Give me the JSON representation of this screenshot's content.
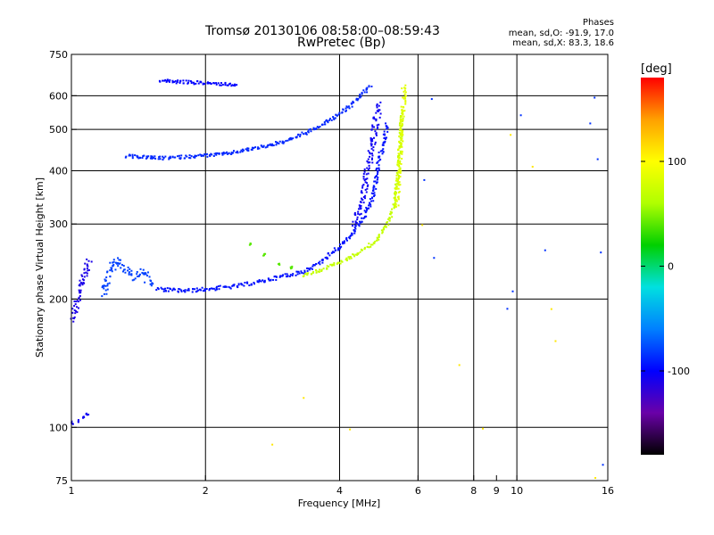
{
  "chart_data": {
    "type": "scatter",
    "title": "Tromsø 20130106 08:58:00–08:59:43",
    "subtitle": "RwPretec (Bp)",
    "xlabel": "Frequency [MHz]",
    "ylabel": "Stationary phase Virtual Height [km]",
    "xscale": "log",
    "yscale": "log",
    "xlim": [
      1,
      16
    ],
    "ylim": [
      75,
      750
    ],
    "x_ticks": [
      {
        "v": 1,
        "label": "1"
      },
      {
        "v": 2,
        "label": "2"
      },
      {
        "v": 4,
        "label": "4"
      },
      {
        "v": 6,
        "label": "6"
      },
      {
        "v": 8,
        "label": "8"
      },
      {
        "v": 9,
        "label": "9"
      },
      {
        "v": 10,
        "label": "10"
      },
      {
        "v": 16,
        "label": "16"
      }
    ],
    "x_gridlines": [
      1,
      2,
      4,
      6,
      8,
      10,
      16
    ],
    "y_ticks": [
      {
        "v": 75,
        "label": "75"
      },
      {
        "v": 100,
        "label": "100"
      },
      {
        "v": 200,
        "label": "200"
      },
      {
        "v": 300,
        "label": "300"
      },
      {
        "v": 400,
        "label": "400"
      },
      {
        "v": 500,
        "label": "500"
      },
      {
        "v": 600,
        "label": "600"
      },
      {
        "v": 750,
        "label": "750"
      }
    ],
    "y_gridlines": [
      100,
      200,
      300,
      400,
      500,
      600
    ],
    "phases": {
      "heading": "Phases",
      "o_stats": "mean, sd,O: -91.9, 17.0",
      "x_stats": "mean, sd,X:  83.3, 18.6"
    },
    "colorbar": {
      "unit": "[deg]",
      "range": [
        -180,
        180
      ],
      "ticks": [
        {
          "v": 100,
          "label": "100"
        },
        {
          "v": 0,
          "label": "0"
        },
        {
          "v": -100,
          "label": "-100"
        }
      ],
      "colormap": [
        "#000000",
        "#6a00a8",
        "#0000ff",
        "#0080ff",
        "#00e0e0",
        "#00d000",
        "#b0ff00",
        "#ffff00",
        "#ffa000",
        "#ff0000"
      ]
    },
    "series": [
      {
        "phase_deg": -110,
        "spread": 0.012,
        "points": [
          [
            1.0,
            180
          ],
          [
            1.02,
            195
          ],
          [
            1.04,
            210
          ],
          [
            1.06,
            225
          ],
          [
            1.08,
            240
          ],
          [
            1.1,
            250
          ]
        ]
      },
      {
        "phase_deg": -105,
        "spread": 0.01,
        "points": [
          [
            1.0,
            103
          ],
          [
            1.03,
            104
          ],
          [
            1.06,
            106
          ],
          [
            1.08,
            108
          ]
        ]
      },
      {
        "phase_deg": -80,
        "spread": 0.014,
        "points": [
          [
            1.18,
            205
          ],
          [
            1.2,
            225
          ],
          [
            1.25,
            250
          ],
          [
            1.3,
            240
          ],
          [
            1.38,
            225
          ],
          [
            1.45,
            235
          ],
          [
            1.5,
            215
          ]
        ]
      },
      {
        "phase_deg": -95,
        "spread": 0.007,
        "points": [
          [
            1.55,
            212
          ],
          [
            1.8,
            210
          ],
          [
            2.0,
            212
          ],
          [
            2.3,
            215
          ],
          [
            2.6,
            220
          ],
          [
            3.0,
            228
          ],
          [
            3.3,
            233
          ],
          [
            3.6,
            245
          ],
          [
            3.9,
            262
          ],
          [
            4.2,
            280
          ],
          [
            4.5,
            310
          ],
          [
            4.7,
            340
          ],
          [
            4.8,
            380
          ],
          [
            4.9,
            430
          ],
          [
            5.0,
            470
          ],
          [
            5.1,
            520
          ]
        ]
      },
      {
        "phase_deg": -105,
        "spread": 0.012,
        "points": [
          [
            4.3,
            300
          ],
          [
            4.5,
            350
          ],
          [
            4.6,
            400
          ],
          [
            4.7,
            460
          ],
          [
            4.8,
            520
          ],
          [
            4.9,
            580
          ]
        ]
      },
      {
        "phase_deg": -88,
        "spread": 0.006,
        "points": [
          [
            1.32,
            435
          ],
          [
            1.6,
            430
          ],
          [
            1.9,
            435
          ],
          [
            2.2,
            440
          ],
          [
            2.6,
            455
          ],
          [
            3.0,
            470
          ],
          [
            3.3,
            490
          ],
          [
            3.6,
            510
          ],
          [
            3.9,
            540
          ],
          [
            4.2,
            570
          ],
          [
            4.5,
            610
          ],
          [
            4.7,
            640
          ]
        ]
      },
      {
        "phase_deg": -100,
        "spread": 0.006,
        "points": [
          [
            1.57,
            655
          ],
          [
            1.7,
            650
          ],
          [
            1.85,
            648
          ],
          [
            2.0,
            645
          ],
          [
            2.2,
            642
          ],
          [
            2.35,
            640
          ]
        ]
      },
      {
        "phase_deg": 70,
        "spread": 0.006,
        "points": [
          [
            3.3,
            228
          ],
          [
            3.6,
            235
          ],
          [
            4.0,
            245
          ],
          [
            4.4,
            258
          ],
          [
            4.8,
            275
          ],
          [
            5.1,
            300
          ],
          [
            5.3,
            340
          ],
          [
            5.4,
            400
          ],
          [
            5.45,
            470
          ],
          [
            5.5,
            560
          ]
        ]
      },
      {
        "phase_deg": 85,
        "spread": 0.008,
        "points": [
          [
            5.35,
            330
          ],
          [
            5.4,
            390
          ],
          [
            5.45,
            450
          ],
          [
            5.5,
            520
          ],
          [
            5.55,
            600
          ],
          [
            5.55,
            640
          ]
        ]
      },
      {
        "phase_deg": 40,
        "spread": 0.006,
        "points": [
          [
            2.5,
            270
          ],
          [
            2.7,
            255
          ],
          [
            2.9,
            242
          ],
          [
            3.1,
            238
          ]
        ]
      },
      {
        "phase_deg": -85,
        "spread": 0.03,
        "points": [
          [
            6.2,
            380
          ],
          [
            6.4,
            590
          ],
          [
            6.5,
            250
          ],
          [
            9.5,
            190
          ],
          [
            9.8,
            210
          ],
          [
            10.1,
            540
          ],
          [
            11.5,
            260
          ],
          [
            14.5,
            520
          ],
          [
            14.8,
            600
          ],
          [
            15.2,
            430
          ],
          [
            15.3,
            260
          ],
          [
            15.5,
            82
          ]
        ]
      },
      {
        "phase_deg": 110,
        "spread": 0.03,
        "points": [
          [
            6.1,
            300
          ],
          [
            7.4,
            140
          ],
          [
            8.3,
            100
          ],
          [
            9.7,
            490
          ],
          [
            10.8,
            410
          ],
          [
            11.9,
            190
          ],
          [
            12.1,
            160
          ],
          [
            14.9,
            76
          ],
          [
            2.8,
            92
          ],
          [
            3.3,
            118
          ],
          [
            4.2,
            99
          ]
        ]
      }
    ]
  }
}
